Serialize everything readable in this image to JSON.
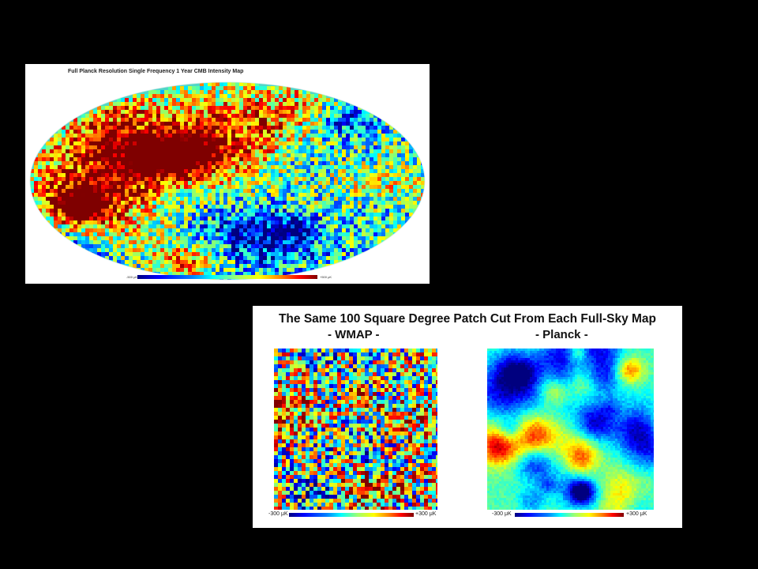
{
  "top_map": {
    "title": "Full Planck Resolution Single Frequency 1 Year CMB Intensity Map",
    "colorbar_min": "-500 μK",
    "colorbar_max": "+500 μK"
  },
  "comparison": {
    "title": "The Same 100 Square Degree Patch Cut From Each Full-Sky Map",
    "wmap_label": "- WMAP -",
    "planck_label": "- Planck -",
    "wmap_colorbar_min": "-300 μK",
    "wmap_colorbar_max": "+300 μK",
    "planck_colorbar_min": "-300 μK",
    "planck_colorbar_max": "+300 μK"
  },
  "colors": {
    "background": "#000000",
    "panel": "#ffffff",
    "colormap": [
      "#00007f",
      "#0000ff",
      "#007fff",
      "#00ffff",
      "#7fff7f",
      "#ffff00",
      "#ff7f00",
      "#ff0000",
      "#7f0000"
    ]
  }
}
